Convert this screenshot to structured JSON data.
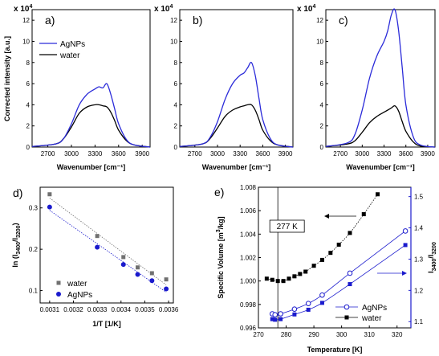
{
  "figure": {
    "panels": [
      "a)",
      "b)",
      "c)",
      "d)",
      "e)"
    ],
    "multiplier": "x 10",
    "multiplier_exp": "4"
  },
  "chart_data": [
    {
      "id": "a",
      "type": "line",
      "label": "a)",
      "ylabel": "Corrected intensity [a.u.]",
      "xlabel": "Wavenumber [cm⁻¹]",
      "xlim": [
        2500,
        4000
      ],
      "ylim": [
        0,
        13
      ],
      "xticks": [
        2700,
        3000,
        3300,
        3600,
        3900
      ],
      "yticks": [
        0,
        2,
        4,
        6,
        8,
        10,
        12
      ],
      "legend": "upper-left",
      "series": [
        {
          "name": "AgNPs",
          "color": "#2b2bd9",
          "x": [
            2500,
            2800,
            2900,
            3000,
            3100,
            3200,
            3300,
            3350,
            3400,
            3450,
            3500,
            3550,
            3600,
            3700,
            3800,
            4000
          ],
          "y": [
            0.05,
            0.3,
            0.8,
            2.2,
            4.0,
            5.0,
            5.5,
            5.7,
            5.6,
            6.0,
            5.0,
            3.6,
            2.2,
            0.7,
            0.2,
            0.0
          ]
        },
        {
          "name": "water",
          "color": "#000000",
          "x": [
            2500,
            2800,
            2900,
            3000,
            3100,
            3200,
            3300,
            3350,
            3400,
            3450,
            3500,
            3550,
            3600,
            3700,
            3800,
            4000
          ],
          "y": [
            0.05,
            0.3,
            0.8,
            1.9,
            3.2,
            3.8,
            4.0,
            4.0,
            3.9,
            3.8,
            3.3,
            2.5,
            1.6,
            0.6,
            0.2,
            0.0
          ]
        }
      ]
    },
    {
      "id": "b",
      "type": "line",
      "label": "b)",
      "xlabel": "Wavenumber [cm⁻¹]",
      "xlim": [
        2500,
        4000
      ],
      "ylim": [
        0,
        13
      ],
      "xticks": [
        2700,
        3000,
        3300,
        3600,
        3900
      ],
      "yticks": [
        0,
        2,
        4,
        6,
        8,
        10,
        12
      ],
      "series": [
        {
          "name": "AgNPs",
          "color": "#2b2bd9",
          "x": [
            2500,
            2800,
            2900,
            3000,
            3100,
            3200,
            3300,
            3350,
            3400,
            3450,
            3500,
            3550,
            3600,
            3700,
            3800,
            4000
          ],
          "y": [
            0.05,
            0.3,
            0.9,
            2.4,
            4.5,
            6.0,
            6.8,
            7.0,
            7.5,
            8.0,
            6.8,
            4.6,
            2.6,
            0.8,
            0.2,
            0.0
          ]
        },
        {
          "name": "water",
          "color": "#000000",
          "x": [
            2500,
            2800,
            2900,
            3000,
            3100,
            3200,
            3300,
            3350,
            3400,
            3450,
            3500,
            3550,
            3600,
            3700,
            3800,
            4000
          ],
          "y": [
            0.05,
            0.3,
            0.8,
            1.8,
            2.9,
            3.5,
            3.8,
            3.9,
            4.0,
            4.0,
            3.5,
            2.6,
            1.6,
            0.6,
            0.2,
            0.0
          ]
        }
      ]
    },
    {
      "id": "c",
      "type": "line",
      "label": "c)",
      "xlabel": "Wavenumber [cm⁻¹]",
      "xlim": [
        2500,
        4000
      ],
      "ylim": [
        0,
        13
      ],
      "xticks": [
        2700,
        3000,
        3300,
        3600,
        3900
      ],
      "yticks": [
        0,
        2,
        4,
        6,
        8,
        10,
        12
      ],
      "series": [
        {
          "name": "AgNPs",
          "color": "#2b2bd9",
          "x": [
            2500,
            2800,
            2900,
            3000,
            3100,
            3200,
            3300,
            3350,
            3400,
            3450,
            3500,
            3550,
            3600,
            3700,
            3800,
            4000
          ],
          "y": [
            0.05,
            0.4,
            1.2,
            3.5,
            6.5,
            8.6,
            10.0,
            11.0,
            12.5,
            13.0,
            11.0,
            7.5,
            4.0,
            1.0,
            0.2,
            0.0
          ]
        },
        {
          "name": "water",
          "color": "#000000",
          "x": [
            2500,
            2800,
            2900,
            3000,
            3100,
            3200,
            3300,
            3350,
            3400,
            3450,
            3500,
            3550,
            3600,
            3700,
            3800,
            4000
          ],
          "y": [
            0.05,
            0.3,
            0.6,
            1.4,
            2.3,
            2.9,
            3.3,
            3.5,
            3.7,
            3.9,
            3.4,
            2.4,
            1.5,
            0.5,
            0.1,
            0.0
          ]
        }
      ]
    },
    {
      "id": "d",
      "type": "scatter",
      "label": "d)",
      "xlabel": "1/T [1/K]",
      "ylabel_prefix": "ln (I",
      "ylabel_sub1": "3400",
      "ylabel_mid": "/I",
      "ylabel_sub2": "3200",
      "ylabel_suffix": ")",
      "xlim": [
        0.00306,
        0.00362
      ],
      "ylim": [
        0.07,
        0.35
      ],
      "xticks": [
        "0.0031",
        "0.0032",
        "0.0033",
        "0.0034",
        "0.0035",
        "0.0036"
      ],
      "yticks": [
        "0.1",
        "0.2",
        "0.3"
      ],
      "legend": "lower-left",
      "series": [
        {
          "name": "water",
          "color": "#707070",
          "marker": "square",
          "x": [
            0.0031,
            0.0033,
            0.00341,
            0.00347,
            0.00353,
            0.00359
          ],
          "y": [
            0.333,
            0.232,
            0.181,
            0.156,
            0.142,
            0.127
          ]
        },
        {
          "name": "AgNPs",
          "color": "#1a1acd",
          "marker": "circle",
          "x": [
            0.0031,
            0.0033,
            0.00341,
            0.00347,
            0.00353,
            0.00359
          ],
          "y": [
            0.302,
            0.205,
            0.163,
            0.139,
            0.124,
            0.104
          ]
        }
      ]
    },
    {
      "id": "e",
      "type": "scatter",
      "label": "e)",
      "xlabel": "Temperature [K]",
      "ylabel_left_prefix": "Specific Volume [m",
      "ylabel_left_sup": "3",
      "ylabel_left_suffix": "/kg]",
      "ylabel_right_prefix": "I",
      "ylabel_right_sub1": "3400",
      "ylabel_right_mid": "/I",
      "ylabel_right_sub2": "3200",
      "annotation": "277 K",
      "annotation_x": 277,
      "xlim": [
        270,
        325
      ],
      "ylim_left": [
        0.996,
        1.008
      ],
      "ylim_right": [
        1.08,
        1.53
      ],
      "xticks": [
        270,
        280,
        290,
        300,
        310,
        320
      ],
      "yticks_left": [
        "0.996",
        "0.998",
        "1.000",
        "1.002",
        "1.004",
        "1.006",
        "1.008"
      ],
      "yticks_right": [
        "1.1",
        "1.2",
        "1.3",
        "1.4",
        "1.5"
      ],
      "legend": "lower-right",
      "series": [
        {
          "name": "specific volume",
          "axis": "left",
          "color": "#000000",
          "marker": "square",
          "style": "dotted",
          "x": [
            273,
            275,
            277,
            279,
            281,
            283,
            285,
            287,
            290,
            293,
            296,
            299,
            303,
            308,
            313
          ],
          "y": [
            1.0002,
            1.0001,
            1.0,
            1.0,
            1.0002,
            1.0004,
            1.0006,
            1.0008,
            1.0013,
            1.0018,
            1.0024,
            1.0031,
            1.0041,
            1.0057,
            1.0074
          ]
        },
        {
          "name": "AgNPs",
          "axis": "right",
          "color": "#1a1acd",
          "marker": "circle-open",
          "style": "solid",
          "x": [
            275,
            276,
            278,
            283,
            288,
            293,
            303,
            323
          ],
          "y": [
            1.125,
            1.122,
            1.125,
            1.14,
            1.158,
            1.185,
            1.255,
            1.39
          ]
        },
        {
          "name": "water",
          "axis": "right",
          "color": "#1a1acd",
          "marker": "square",
          "style": "solid",
          "x": [
            275,
            276,
            278,
            283,
            288,
            293,
            303,
            323
          ],
          "y": [
            1.108,
            1.106,
            1.108,
            1.123,
            1.138,
            1.16,
            1.22,
            1.345
          ]
        }
      ]
    }
  ]
}
